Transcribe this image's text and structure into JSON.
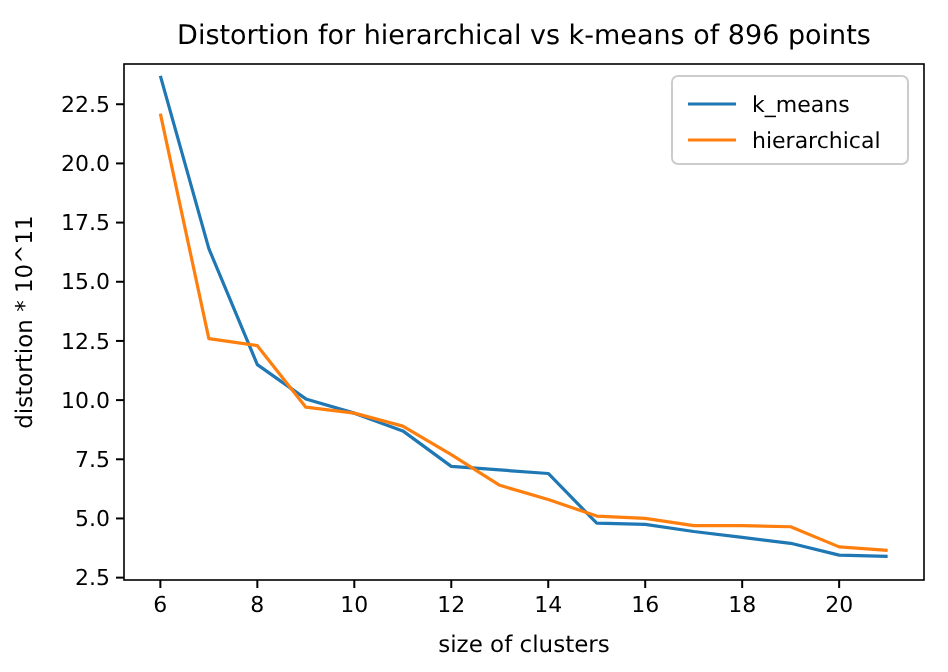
{
  "chart_data": {
    "type": "line",
    "title": "Distortion for hierarchical vs k-means of 896 points",
    "xlabel": "size of clusters",
    "ylabel": "distortion * 10^11",
    "x": [
      6,
      7,
      8,
      9,
      10,
      11,
      12,
      13,
      14,
      15,
      16,
      17,
      18,
      19,
      20,
      21
    ],
    "series": [
      {
        "name": "k_means",
        "color": "#1f77b4",
        "values": [
          23.7,
          16.4,
          11.5,
          10.05,
          9.45,
          8.7,
          7.2,
          7.05,
          6.9,
          4.8,
          4.75,
          4.45,
          4.2,
          3.95,
          3.45,
          3.4
        ]
      },
      {
        "name": "hierarchical",
        "color": "#ff7f0e",
        "values": [
          22.1,
          12.6,
          12.3,
          9.7,
          9.45,
          8.9,
          7.7,
          6.4,
          5.8,
          5.1,
          5.0,
          4.7,
          4.7,
          4.65,
          3.8,
          3.65
        ]
      }
    ],
    "xlim": [
      5.25,
      21.75
    ],
    "xticks": [
      6,
      8,
      10,
      12,
      14,
      16,
      18,
      20
    ],
    "ylim": [
      2.4,
      24.2
    ],
    "yticks": [
      2.5,
      {
        "value": 5,
        "label": "5.0"
      },
      {
        "value": 7.5,
        "label": "7.5"
      },
      {
        "value": 10,
        "label": "10.0"
      },
      12.5,
      {
        "value": 15,
        "label": "15.0"
      },
      17.5,
      {
        "value": 20,
        "label": "20.0"
      },
      22.5
    ],
    "legend": "top right",
    "grid": false
  }
}
